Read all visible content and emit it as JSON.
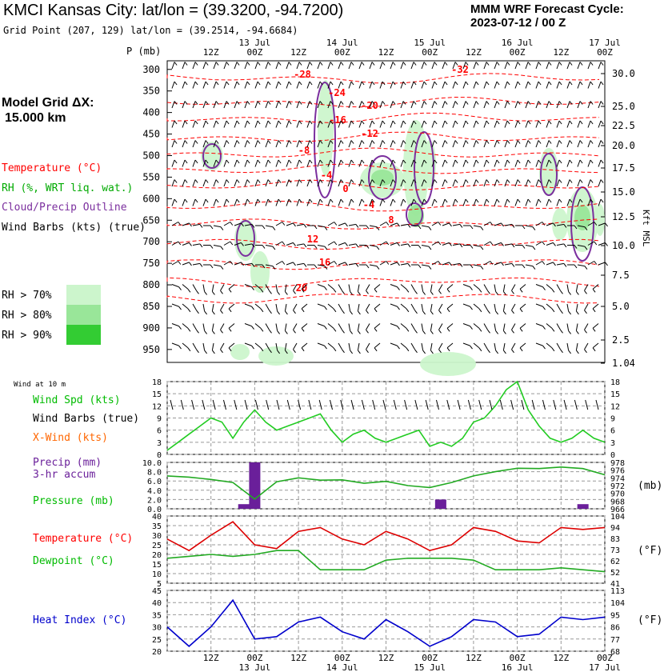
{
  "header": {
    "title": "KMCI Kansas City:  lat/lon = (39.3200, -94.7200)",
    "grid_point": "Grid Point (207, 129) lat/lon = (39.2514, -94.6684)",
    "cycle_line1": "MMM WRF Forecast Cycle:",
    "cycle_line2": "2023-07-12 / 00  Z",
    "model_grid_line1": "Model Grid ΔX:",
    "model_grid_line2": "15.000 km"
  },
  "legend": {
    "temperature": "Temperature (°C)",
    "rh": "RH (%, WRT liq. wat.)",
    "cloud": "Cloud/Precip Outline",
    "wind": "Wind Barbs (kts) (true)",
    "rh70": "RH > 70%",
    "rh80": "RH > 80%",
    "rh90": "RH > 90%"
  },
  "colors": {
    "temperature": "#ff0000",
    "rh": "#00bb00",
    "cloud": "#7b2f9e",
    "rh70": "#ccf5cc",
    "rh80": "#99e699",
    "rh90": "#33cc33",
    "heat_index": "#0000cc",
    "precip": "#6a1f9a"
  },
  "time_axis": {
    "hour_labels": [
      "12Z",
      "00Z",
      "12Z",
      "00Z",
      "12Z",
      "00Z",
      "12Z",
      "00Z",
      "12Z",
      "00Z"
    ],
    "date_labels": [
      "13 Jul",
      "14 Jul",
      "15 Jul",
      "16 Jul",
      "17 Jul"
    ],
    "pressure_label": "P (mb)"
  },
  "panels": {
    "wind10_title": "Wind at 10 m",
    "wind_spd": "Wind Spd (kts)",
    "wind_barbs": "Wind Barbs (true)",
    "xwind": "X-Wind (kts)",
    "precip_l1": "Precip (mm)",
    "precip_l2": "3-hr accum",
    "pressure": "Pressure (mb)",
    "mb_unit": "(mb)",
    "temperature": "Temperature (°C)",
    "dewpoint": "Dewpoint (°C)",
    "degF": "(°F)",
    "heat_index": "Heat Index (°C)",
    "degF2": "(°F)"
  },
  "chart_data": [
    {
      "type": "heatmap",
      "name": "cross-section",
      "ylabel": "P (mb)",
      "pressure_levels": [
        300,
        350,
        400,
        450,
        500,
        550,
        600,
        650,
        700,
        750,
        800,
        850,
        900,
        950
      ],
      "height_axis_label": "Kft MSL",
      "height_ticks": [
        "30.0",
        "25.0",
        "22.5",
        "20.0",
        "17.5",
        "15.0",
        "12.5",
        "10.0",
        "7.5",
        "5.0",
        "2.5",
        "1.04"
      ],
      "temperature_contour_labels": [
        "-28",
        "-32",
        "-24",
        "-20",
        "-16",
        "-12",
        "-8",
        "-4",
        "0",
        "-4",
        "8",
        "12",
        "16",
        "20"
      ],
      "rh_levels": [
        70,
        80,
        90
      ]
    },
    {
      "type": "line",
      "name": "wind-speed",
      "x_hours": [
        0,
        6,
        12,
        18,
        24,
        30,
        36,
        42,
        48,
        54,
        60,
        66,
        72,
        78,
        84,
        90,
        96,
        102,
        108,
        114,
        120
      ],
      "series": [
        {
          "name": "Wind Spd (kts)",
          "values": [
            1,
            5,
            9,
            4,
            11,
            6,
            8,
            10,
            3,
            6,
            3,
            5,
            2,
            2,
            8,
            12,
            18,
            7,
            3,
            6,
            3
          ]
        }
      ],
      "series_full": {
        "hours": [
          0,
          3,
          6,
          9,
          12,
          15,
          18,
          21,
          24,
          27,
          30,
          33,
          36,
          39,
          42,
          45,
          48,
          51,
          54,
          57,
          60,
          63,
          66,
          69,
          72,
          75,
          78,
          81,
          84,
          87,
          90,
          93,
          96,
          99,
          102,
          105,
          108,
          111,
          114,
          117,
          120
        ],
        "values": [
          1,
          3,
          5,
          7,
          9,
          8,
          4,
          8,
          11,
          8,
          6,
          7,
          8,
          9,
          10,
          6,
          3,
          5,
          6,
          4,
          3,
          4,
          5,
          6,
          2,
          3,
          2,
          4,
          8,
          9,
          12,
          16,
          18,
          11,
          7,
          4,
          3,
          4,
          6,
          4,
          3
        ]
      },
      "ylim": [
        0,
        18
      ],
      "yticks": [
        0,
        3,
        6,
        9,
        12,
        15,
        18
      ]
    },
    {
      "type": "bar",
      "name": "precip-pressure",
      "precip_mm": [
        {
          "hour": 21,
          "value": 1.0
        },
        {
          "hour": 24,
          "value": 10.0
        },
        {
          "hour": 75,
          "value": 2.0
        },
        {
          "hour": 114,
          "value": 1.0
        }
      ],
      "ylim": [
        0,
        10
      ],
      "yticks": [
        0,
        2,
        4,
        6,
        8,
        10
      ],
      "pressure_mb": {
        "hours": [
          0,
          6,
          12,
          18,
          24,
          30,
          36,
          42,
          48,
          54,
          60,
          66,
          72,
          78,
          84,
          90,
          96,
          102,
          108,
          114,
          120
        ],
        "values": [
          974.5,
          974.2,
          973.6,
          972.8,
          968.5,
          973.0,
          974.0,
          973.4,
          973.5,
          972.6,
          973.1,
          972.0,
          971.5,
          972.8,
          974.5,
          975.6,
          976.5,
          976.4,
          976.8,
          976.4,
          974.8
        ]
      },
      "pressure_ylim": [
        966,
        978
      ],
      "pressure_ticks": [
        966,
        968,
        970,
        972,
        974,
        976,
        978
      ]
    },
    {
      "type": "line",
      "name": "temperature-dewpoint",
      "x_hours": [
        0,
        6,
        12,
        18,
        24,
        30,
        36,
        42,
        48,
        54,
        60,
        66,
        72,
        78,
        84,
        90,
        96,
        102,
        108,
        114,
        120
      ],
      "series": [
        {
          "name": "Temperature (°C)",
          "values": [
            28,
            22,
            30,
            37,
            25,
            23,
            32,
            34,
            28,
            25,
            32,
            28,
            22,
            25,
            34,
            32,
            27,
            26,
            34,
            33,
            34
          ]
        },
        {
          "name": "Dewpoint (°C)",
          "values": [
            18,
            19,
            20,
            19,
            20,
            22,
            22,
            12,
            12,
            12,
            17,
            18,
            18,
            18,
            17,
            12,
            12,
            12,
            13,
            12,
            11
          ]
        }
      ],
      "ylim": [
        5,
        40
      ],
      "yticks": [
        5,
        10,
        15,
        20,
        25,
        30,
        35,
        40
      ],
      "f_ticks": [
        41,
        52,
        62,
        73,
        83,
        94,
        104
      ]
    },
    {
      "type": "line",
      "name": "heat-index",
      "x_hours": [
        0,
        6,
        12,
        18,
        24,
        30,
        36,
        42,
        48,
        54,
        60,
        66,
        72,
        78,
        84,
        90,
        96,
        102,
        108,
        114,
        120
      ],
      "series": [
        {
          "name": "Heat Index (°C)",
          "values": [
            30,
            22,
            30,
            41,
            25,
            26,
            32,
            34,
            28,
            25,
            33,
            28,
            22,
            26,
            33,
            32,
            26,
            27,
            34,
            33,
            34
          ]
        }
      ],
      "ylim": [
        20,
        45
      ],
      "yticks": [
        20,
        25,
        30,
        35,
        40,
        45
      ],
      "f_ticks": [
        68,
        77,
        86,
        95,
        104,
        113
      ]
    }
  ]
}
